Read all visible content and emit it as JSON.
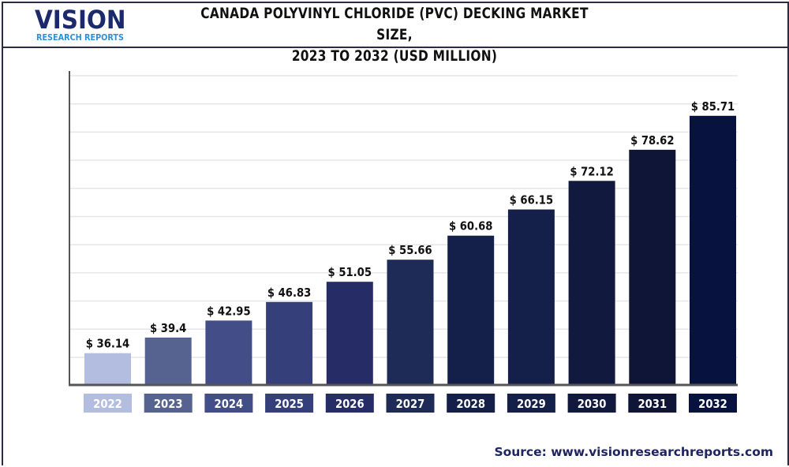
{
  "logo": {
    "word": "VISION",
    "sub": "RESEARCH REPORTS"
  },
  "header": {
    "title_line1": "CANADA POLYVINYL CHLORIDE (PVC) DECKING MARKET SIZE,",
    "title_line2": "2023 TO 2032 (USD MILLION)"
  },
  "source": "Source: www.visionresearchreports.com",
  "chart_data": {
    "type": "bar",
    "title": "CANADA POLYVINYL CHLORIDE (PVC) DECKING MARKET SIZE, 2023 TO 2032 (USD MILLION)",
    "categories": [
      "2022",
      "2023",
      "2024",
      "2025",
      "2026",
      "2027",
      "2028",
      "2029",
      "2030",
      "2031",
      "2032"
    ],
    "values": [
      36.14,
      39.4,
      42.95,
      46.83,
      51.05,
      55.66,
      60.68,
      66.15,
      72.12,
      78.62,
      85.71
    ],
    "data_labels": [
      "$ 36.14",
      "$ 39.4",
      "$ 42.95",
      "$ 46.83",
      "$ 51.05",
      "$ 55.66",
      "$ 60.68",
      "$ 66.15",
      "$ 72.12",
      "$ 78.62",
      "$ 85.71"
    ],
    "colors": [
      "#b3bde0",
      "#56628f",
      "#434e88",
      "#353f79",
      "#262d66",
      "#1e2b57",
      "#15204a",
      "#15204a",
      "#12193f",
      "#0e1537",
      "#08123f"
    ],
    "xlabel": "",
    "ylabel": "",
    "ylim": [
      29.5,
      95
    ],
    "grid": true,
    "legend": "none"
  }
}
